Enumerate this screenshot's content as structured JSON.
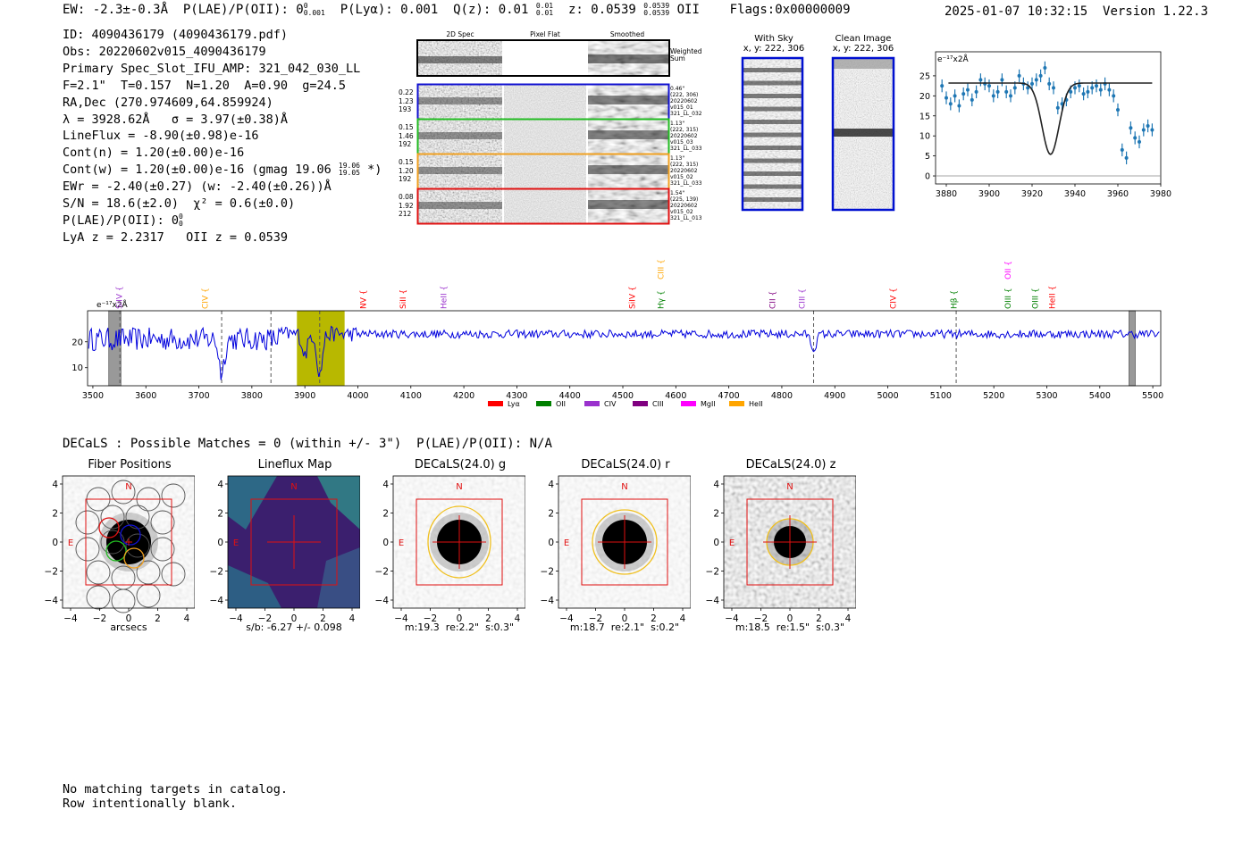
{
  "header": {
    "line_left": "EW: -2.3±-0.3Å  P(LAE)/P(OII): 0 0.001  P(Lyα): 0.001  Q(z): 0.01 0.01  z: 0.0539 0.0539  OII    Flags:0x00000009",
    "ew": "EW: -2.3±-0.3Å",
    "plae_label": "P(LAE)/P(OII): 0",
    "plae_sup": "0",
    "plae_sub": "0.001",
    "plya": "P(Lyα): 0.001",
    "qz": "Q(z): 0.01",
    "qz_sup": "0.01",
    "qz_sub": "0.01",
    "z": "z: 0.0539",
    "z_sup": "0.0539",
    "z_sub": "0.0539",
    "z_line": "OII",
    "flags": "Flags:0x00000009",
    "datetime": "2025-01-07 10:32:15",
    "version": "Version 1.22.3"
  },
  "info": {
    "id": "ID: 4090436179 (4090436179.pdf)",
    "obs": "Obs: 20220602v015_4090436179",
    "primary": "Primary Spec_Slot_IFU_AMP: 321_042_030_LL",
    "params": "F=2.1\"  T=0.157  N=1.20  A=0.90  g=24.5",
    "radec": "RA,Dec (270.974609,64.859924)",
    "lambda": "λ = 3928.62Å   σ = 3.97(±0.38)Å",
    "lineflux": "LineFlux = -8.90(±0.98)e-16",
    "cont_n": "Cont(n) = 1.20(±0.00)e-16",
    "cont_w": "Cont(w) = 1.20(±0.00)e-16 (gmag 19.06",
    "cont_w_sup": "19.06",
    "cont_w_sub": "19.05",
    "cont_w_end": "*)",
    "ewr": "EWr = -2.40(±0.27) (w: -2.40(±0.26))Å",
    "sn": "S/N = 18.6(±2.0)  χ² = 0.6(±0.0)",
    "plae": "P(LAE)/P(OII): 0",
    "plae_sup": "0",
    "plae_sub": "0",
    "lya_z": "LyA z = 2.2317   OII z = 0.0539"
  },
  "cutouts": {
    "col_labels": [
      "2D Spec",
      "Pixel Flat",
      "Smoothed"
    ],
    "weighted_sum": "Weighted\nSum",
    "rows": [
      {
        "vals": "0.22\n1.23\n193",
        "info": "0.46\"\n(222, 306)\n20220602\nv015_01\n321_LL_032",
        "color": "#1010d0"
      },
      {
        "vals": "0.15\n1.46\n192",
        "info": "1.13\"\n(222, 315)\n20220602\nv015_03\n321_LL_033",
        "color": "#22bb22"
      },
      {
        "vals": "0.15\n1.20\n192",
        "info": "1.13\"\n(222, 315)\n20220602\nv015_02\n321_LL_033",
        "color": "#f0a020"
      },
      {
        "vals": "0.08\n1.92\n212",
        "info": "1.54\"\n(225, 139)\n20220602\nv015_02\n321_LL_013",
        "color": "#e01010"
      }
    ],
    "with_sky": "With Sky",
    "with_sky_xy": "x, y: 222, 306",
    "clean": "Clean Image",
    "clean_xy": "x, y: 222, 306"
  },
  "decals": {
    "title": "DECaLS : Possible Matches = 0 (within +/- 3\")  P(LAE)/P(OII): N/A",
    "panels": [
      {
        "title": "Fiber Positions",
        "caption": "arcsecs"
      },
      {
        "title": "Lineflux Map",
        "caption": "s/b: -6.27 +/- 0.098"
      },
      {
        "title": "DECaLS(24.0) g",
        "caption": "m:19.3  re:2.2\"  s:0.3\""
      },
      {
        "title": "DECaLS(24.0) r",
        "caption": "m:18.7  re:2.1\"  s:0.2\""
      },
      {
        "title": "DECaLS(24.0) z",
        "caption": "m:18.5  re:1.5\"  s:0.3\""
      }
    ],
    "compass_n": "N",
    "compass_e": "E",
    "ticks": [
      "4",
      "2",
      "0",
      "−2",
      "−4"
    ],
    "xticks": [
      "−4",
      "−2",
      "0",
      "2",
      "4"
    ]
  },
  "footer": {
    "line1": "No matching targets in catalog.",
    "line2": "Row intentionally blank."
  },
  "colors": {
    "spectrum": "#0000dd",
    "fit_points": "#1f77b4",
    "highlight": "#b8b800",
    "lya": "#ff0000",
    "oii": "#008000",
    "civ": "#9a32cd",
    "ciii": "#800080",
    "mgii": "#ff00ff",
    "heii": "#ffa500"
  },
  "chart_data": [
    {
      "type": "scatter",
      "title": "",
      "ylabel_unit": "e⁻¹⁷x2Å",
      "xlim": [
        3875,
        3980
      ],
      "ylim": [
        -2,
        31
      ],
      "xticks": [
        3880,
        3900,
        3920,
        3940,
        3960,
        3980
      ],
      "yticks": [
        0,
        5,
        10,
        15,
        20,
        25
      ],
      "points": {
        "x": [
          3878,
          3880,
          3882,
          3884,
          3886,
          3888,
          3890,
          3892,
          3894,
          3896,
          3898,
          3900,
          3902,
          3904,
          3906,
          3908,
          3910,
          3912,
          3914,
          3916,
          3918,
          3920,
          3922,
          3924,
          3926,
          3928,
          3930,
          3932,
          3934,
          3936,
          3938,
          3940,
          3942,
          3944,
          3946,
          3948,
          3950,
          3952,
          3954,
          3956,
          3958,
          3960,
          3962,
          3964,
          3966,
          3968,
          3970,
          3972,
          3974,
          3976
        ],
        "y": [
          22.5,
          19.5,
          18,
          20,
          17.5,
          20.5,
          21.5,
          19,
          21,
          24,
          23,
          22.5,
          20,
          21,
          24,
          21,
          20,
          22,
          25,
          23,
          22,
          23,
          24,
          25,
          27,
          23,
          22,
          17,
          18,
          19,
          21,
          22,
          22.5,
          20.5,
          21,
          22,
          22.5,
          21.5,
          23,
          21.5,
          20,
          16.5,
          6.5,
          4.5,
          12,
          9.5,
          8.5,
          11.5,
          12.5,
          11.5
        ],
        "err": 1.6
      },
      "fit": {
        "continuum": 23.2,
        "center": 3928.6,
        "sigma": 3.97,
        "depth": 17.8,
        "xrange": [
          3881,
          3976
        ]
      }
    },
    {
      "type": "line",
      "title": "",
      "ylabel_unit": "e⁻¹⁷x2Å",
      "xlim": [
        3490,
        5515
      ],
      "ylim": [
        3,
        32
      ],
      "xticks": [
        3500,
        3600,
        3700,
        3800,
        3900,
        4000,
        4100,
        4200,
        4300,
        4400,
        4500,
        4600,
        4700,
        4800,
        4900,
        5000,
        5100,
        5200,
        5300,
        5400,
        5500
      ],
      "yticks": [
        10,
        20
      ],
      "continuum_level": 23,
      "highlight_band": [
        3885,
        3975
      ],
      "masked_bands": [
        [
          3530,
          3553
        ],
        [
          5455,
          5467
        ]
      ],
      "dashed_lines": [
        3551,
        3743,
        3836,
        3928,
        4860,
        5129
      ],
      "absorption_features": [
        {
          "x": 3743,
          "depth": 13
        },
        {
          "x": 3900,
          "depth": 8
        },
        {
          "x": 3928,
          "depth": 16
        },
        {
          "x": 4860,
          "depth": 6
        }
      ],
      "line_labels": [
        {
          "label": "SiIV",
          "x": 3550,
          "color": "#9a32cd",
          "row": 0
        },
        {
          "label": "CIV",
          "x": 3712,
          "color": "#ffa500",
          "row": 0
        },
        {
          "label": "NV",
          "x": 4010,
          "color": "#ff0000",
          "row": 0
        },
        {
          "label": "SiII",
          "x": 4085,
          "color": "#ff0000",
          "row": 0
        },
        {
          "label": "HeII",
          "x": 4162,
          "color": "#9a32cd",
          "row": 0
        },
        {
          "label": "SiIV",
          "x": 4518,
          "color": "#ff0000",
          "row": 0
        },
        {
          "label": "Hγ",
          "x": 4572,
          "color": "#008000",
          "row": 0
        },
        {
          "label": "CIII",
          "x": 4572,
          "color": "#ffa500",
          "row": 1
        },
        {
          "label": "CII",
          "x": 4782,
          "color": "#800080",
          "row": 0
        },
        {
          "label": "CIII",
          "x": 4838,
          "color": "#9a32cd",
          "row": 0
        },
        {
          "label": "CIV",
          "x": 5010,
          "color": "#ff0000",
          "row": 0
        },
        {
          "label": "Hβ",
          "x": 5125,
          "color": "#008000",
          "row": 0
        },
        {
          "label": "OIII",
          "x": 5227,
          "color": "#008000",
          "row": 0
        },
        {
          "label": "OII",
          "x": 5227,
          "color": "#ff00ff",
          "row": 1
        },
        {
          "label": "OIII",
          "x": 5278,
          "color": "#008000",
          "row": 0
        },
        {
          "label": "HeII",
          "x": 5310,
          "color": "#ff0000",
          "row": 0
        }
      ],
      "legend": [
        {
          "label": "Lyα",
          "color": "#ff0000"
        },
        {
          "label": "OII",
          "color": "#008000"
        },
        {
          "label": "CIV",
          "color": "#9a32cd"
        },
        {
          "label": "CIII",
          "color": "#800080"
        },
        {
          "label": "MgII",
          "color": "#ff00ff"
        },
        {
          "label": "HeII",
          "color": "#ffa500"
        }
      ]
    }
  ]
}
